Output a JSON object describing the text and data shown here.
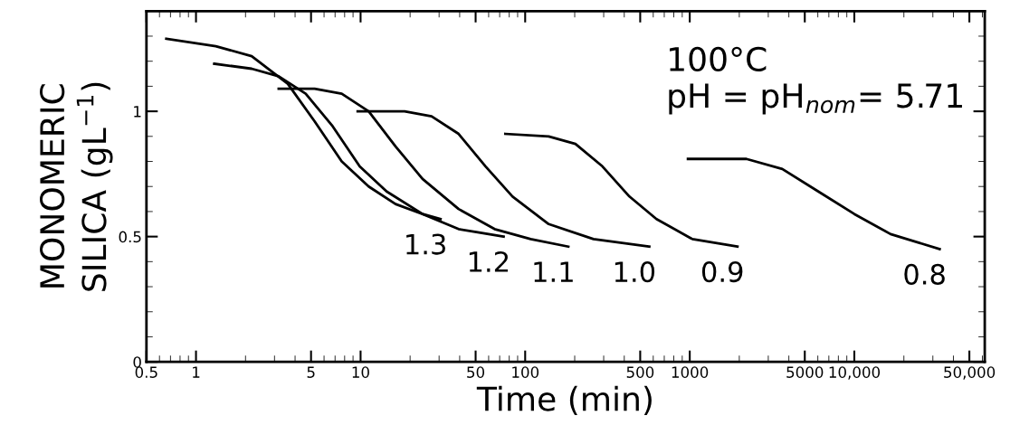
{
  "chart_data": {
    "type": "line",
    "xlabel": "Time (min)",
    "ylabel": "MONOMERIC\nSILICA (gL$^{−1}$)",
    "log": "x",
    "xlim": [
      0.5,
      62000
    ],
    "ylim": [
      0,
      1.4
    ],
    "xticks": [
      0.5,
      1,
      5,
      10,
      50,
      100,
      500,
      1000,
      5000,
      {
        "value": 10000,
        "label": "10,000"
      },
      {
        "value": 50000,
        "label": "50,000"
      }
    ],
    "yticks": [
      0,
      0.5,
      1
    ],
    "grid": false,
    "legend": false,
    "marker": "none",
    "line_style": "solid",
    "series": [
      {
        "color": "#000000",
        "x": [
          0.66,
          1.32,
          2.18,
          3.61,
          5.26,
          7.68,
          11.2,
          16.3,
          23.8,
          30.6
        ],
        "values": [
          1.29,
          1.26,
          1.22,
          1.11,
          0.96,
          0.8,
          0.7,
          0.63,
          0.59,
          0.57
        ]
      },
      {
        "color": "#000000",
        "x": [
          1.29,
          2.18,
          3.18,
          4.64,
          6.77,
          9.88,
          14.4,
          23.8,
          39.4,
          74
        ],
        "values": [
          1.19,
          1.17,
          1.14,
          1.07,
          0.94,
          0.78,
          0.68,
          0.59,
          0.53,
          0.5
        ]
      },
      {
        "color": "#000000",
        "x": [
          3.18,
          5.26,
          7.68,
          11.2,
          16.3,
          23.8,
          39.4,
          65.2,
          108,
          183
        ],
        "values": [
          1.09,
          1.09,
          1.07,
          1.0,
          0.86,
          0.73,
          0.61,
          0.53,
          0.49,
          0.46
        ]
      },
      {
        "color": "#000000",
        "x": [
          9.6,
          18.5,
          27,
          39.4,
          57.5,
          83.8,
          139,
          260,
          568
        ],
        "values": [
          1.0,
          1.0,
          0.98,
          0.91,
          0.78,
          0.66,
          0.55,
          0.49,
          0.46
        ]
      },
      {
        "color": "#000000",
        "x": [
          75.8,
          139,
          202,
          295,
          430,
          628,
          1038,
          1950
        ],
        "values": [
          0.91,
          0.9,
          0.87,
          0.78,
          0.66,
          0.57,
          0.49,
          0.46
        ]
      },
      {
        "color": "#000000",
        "x": [
          975,
          2210,
          3650,
          6040,
          10000,
          16600,
          33000
        ],
        "values": [
          0.81,
          0.81,
          0.77,
          0.68,
          0.59,
          0.51,
          0.45
        ]
      }
    ],
    "annotations": [
      {
        "text": "1.3",
        "x": 30.6,
        "y": 0.57
      },
      {
        "text": "1.2",
        "x": 74,
        "y": 0.5
      },
      {
        "text": "1.1",
        "x": 183,
        "y": 0.46
      },
      {
        "text": "1.0",
        "x": 568,
        "y": 0.46
      },
      {
        "text": "0.9",
        "x": 1950,
        "y": 0.46
      },
      {
        "text": "0.8",
        "x": 33000,
        "y": 0.45
      },
      "100°C\npH = pH$_{nom}$= 5.71"
    ]
  }
}
